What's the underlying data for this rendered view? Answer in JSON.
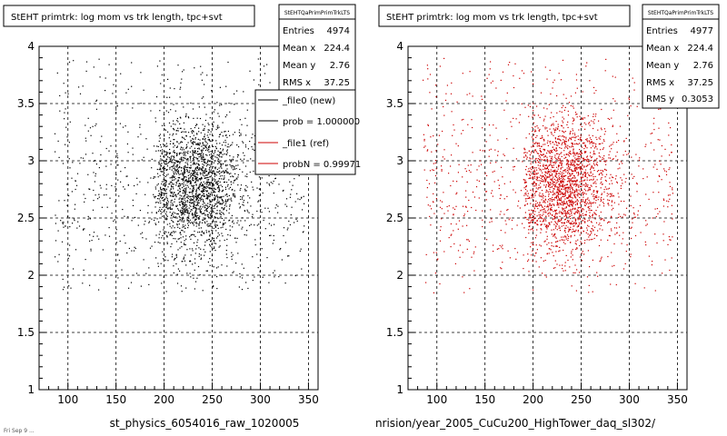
{
  "colors": {
    "background": "#ffffff",
    "new_points": "#000000",
    "ref_points": "#cc0000",
    "frame": "#000000",
    "grid": "#000000"
  },
  "chart_data": [
    {
      "type": "scatter",
      "title": "StEHT primtrk: log mom vs trk length, tpc+svt",
      "xlabel": "st_physics_6054016_raw_1020005",
      "ylabel": "",
      "xlim": [
        70,
        360
      ],
      "ylim": [
        1,
        4
      ],
      "x_ticks": [
        100,
        150,
        200,
        250,
        300,
        350
      ],
      "y_ticks": [
        1,
        1.5,
        2,
        2.5,
        3,
        3.5,
        4
      ],
      "grid": true,
      "point_color": "#000000",
      "density_model": {
        "core": {
          "x_range": [
            195,
            285
          ],
          "y_range": [
            2.2,
            3.3
          ]
        },
        "halo": {
          "x_range": [
            85,
            345
          ],
          "y_range": [
            1.85,
            3.9
          ]
        }
      },
      "stats": {
        "name": "StEHTQaPrimPrimTrkLTS",
        "rows": [
          {
            "label": "Entries",
            "value": "4974"
          },
          {
            "label": "Mean x",
            "value": "224.4"
          },
          {
            "label": "Mean y",
            "value": "2.76"
          },
          {
            "label": "RMS x",
            "value": "37.25"
          }
        ]
      },
      "legend": {
        "placement": "top-right",
        "entries": [
          {
            "label": "_file0 (new)",
            "color": "#000000"
          },
          {
            "label": "prob = 1.000000",
            "color": "#000000"
          },
          {
            "label": "_file1 (ref)",
            "color": "#cc0000"
          },
          {
            "label": "probN = 0.99971",
            "color": "#cc0000"
          }
        ]
      },
      "footer": "Fri Sep  9 ..."
    },
    {
      "type": "scatter",
      "title": "StEHT primtrk: log mom vs trk length, tpc+svt",
      "xlabel": "nrision/year_2005_CuCu200_HighTower_daq_sl302/",
      "ylabel": "",
      "xlim": [
        70,
        360
      ],
      "ylim": [
        1,
        4
      ],
      "x_ticks": [
        100,
        150,
        200,
        250,
        300,
        350
      ],
      "y_ticks": [
        1,
        1.5,
        2,
        2.5,
        3,
        3.5,
        4
      ],
      "grid": true,
      "point_color": "#cc0000",
      "density_model": {
        "core": {
          "x_range": [
            195,
            285
          ],
          "y_range": [
            2.2,
            3.3
          ]
        },
        "halo": {
          "x_range": [
            85,
            345
          ],
          "y_range": [
            1.85,
            3.9
          ]
        }
      },
      "stats": {
        "name": "StEHTQaPrimPrimTrkLTS",
        "rows": [
          {
            "label": "Entries",
            "value": "4977"
          },
          {
            "label": "Mean x",
            "value": "224.4"
          },
          {
            "label": "Mean y",
            "value": "2.76"
          },
          {
            "label": "RMS x",
            "value": "37.25"
          },
          {
            "label": "RMS y",
            "value": "0.3053"
          }
        ]
      }
    }
  ]
}
